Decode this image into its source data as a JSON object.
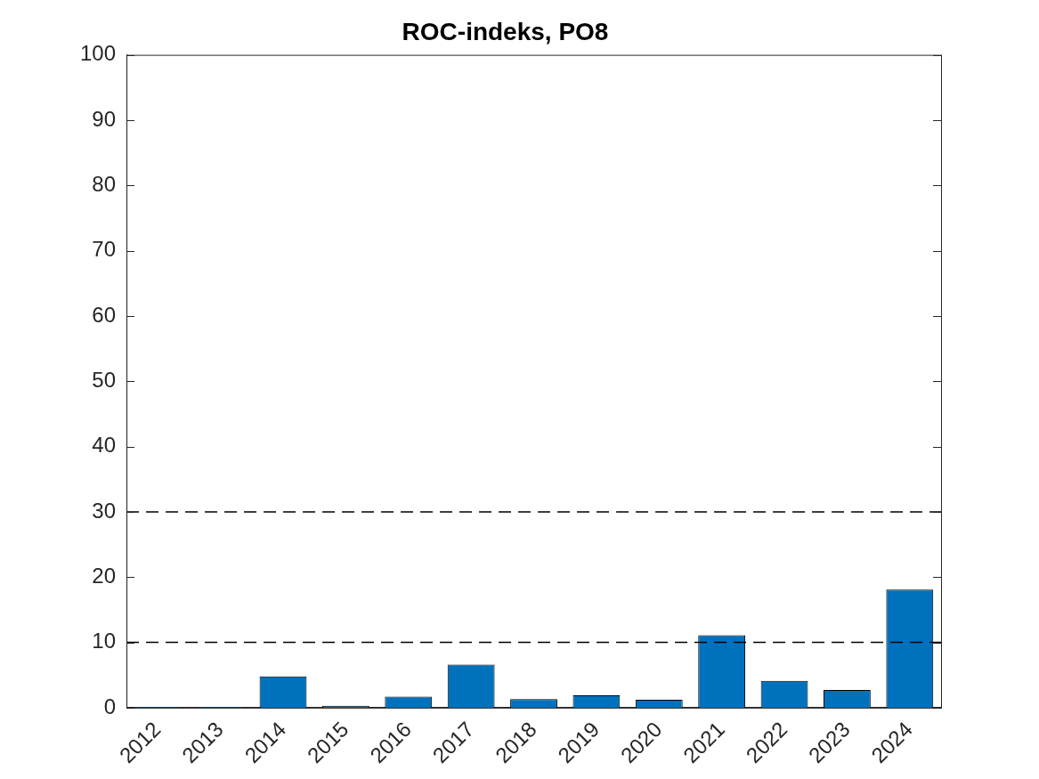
{
  "chart_data": {
    "type": "bar",
    "title": "ROC-indeks, PO8",
    "categories": [
      "2012",
      "2013",
      "2014",
      "2015",
      "2016",
      "2017",
      "2018",
      "2019",
      "2020",
      "2021",
      "2022",
      "2023",
      "2024"
    ],
    "values": [
      0.1,
      0.1,
      4.8,
      0.3,
      1.7,
      6.6,
      1.3,
      1.9,
      1.2,
      11.1,
      4.1,
      2.7,
      18.1
    ],
    "color": "#0072bd",
    "reference_lines": [
      10,
      30
    ],
    "ylim": [
      0,
      100
    ],
    "yticks": [
      0,
      10,
      20,
      30,
      40,
      50,
      60,
      70,
      80,
      90,
      100
    ],
    "grid": false
  }
}
